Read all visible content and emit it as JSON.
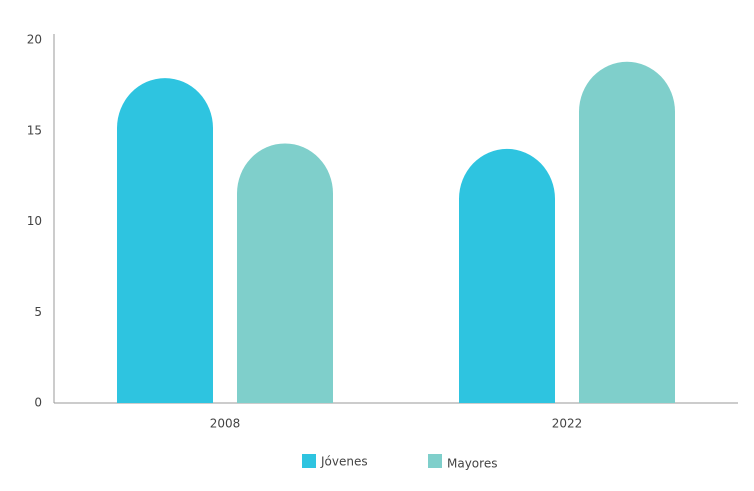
{
  "chart_data": {
    "type": "bar",
    "categories": [
      "2008",
      "2022"
    ],
    "series": [
      {
        "name": "Jóvenes",
        "color": "#2ec4e0",
        "values": [
          17.9,
          14.0
        ]
      },
      {
        "name": "Mayores",
        "color": "#7fcfcb",
        "values": [
          14.3,
          18.8
        ]
      }
    ],
    "ylim": [
      0,
      20
    ],
    "yticks": [
      0,
      5,
      10,
      15,
      20
    ],
    "grid": false
  }
}
